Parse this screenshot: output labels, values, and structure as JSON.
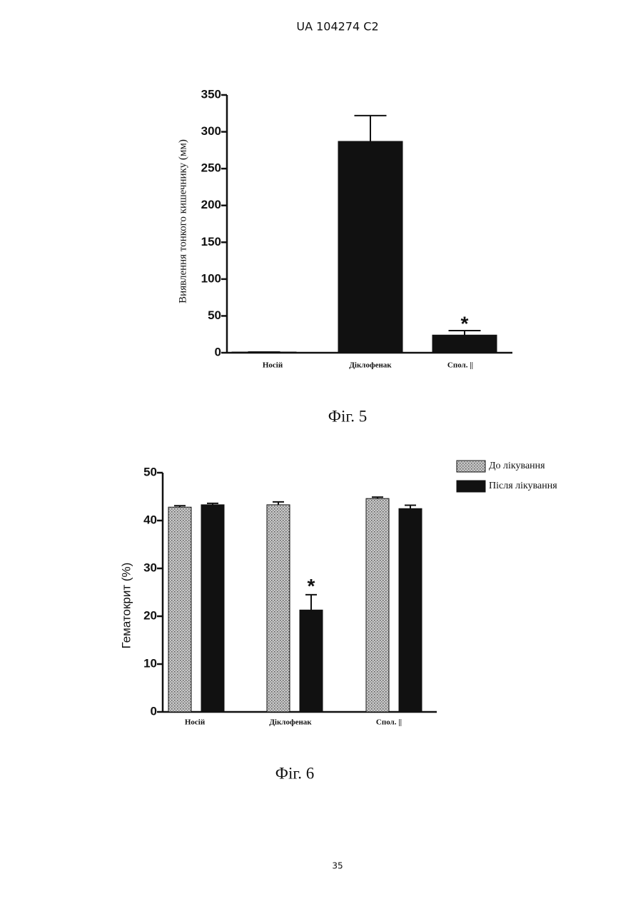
{
  "header": "UA 104274 C2",
  "page_number": "35",
  "chart_data": [
    {
      "type": "bar",
      "caption": "Фіг. 5",
      "ylabel": "Виявлення тонкого кишечнику (мм)",
      "categories": [
        "Носій",
        "Діклофенак",
        "Спол. ||"
      ],
      "values": [
        1,
        287,
        24
      ],
      "errors": [
        0,
        35,
        6
      ],
      "color": "#111111",
      "ylim": [
        0,
        350
      ],
      "yticks": [
        0,
        50,
        100,
        150,
        200,
        250,
        300,
        350
      ],
      "annotations": [
        {
          "text": "*",
          "index": 2
        }
      ]
    },
    {
      "type": "grouped_bar",
      "caption": "Фіг. 6",
      "ylabel": "Гематокрит (%)",
      "categories": [
        "Носій",
        "Діклофенак",
        "Спол. ||"
      ],
      "series": [
        {
          "name": "До лікування",
          "color": "#9a9a9a",
          "values": [
            42.8,
            43.3,
            44.6
          ],
          "errors": [
            0.3,
            0.6,
            0.3
          ]
        },
        {
          "name": "Після лікування",
          "color": "#111111",
          "values": [
            43.3,
            21.3,
            42.5
          ],
          "errors": [
            0.3,
            3.2,
            0.7
          ]
        }
      ],
      "ylim": [
        0,
        50
      ],
      "yticks": [
        0,
        10,
        20,
        30,
        40,
        50
      ],
      "legend": "upper right",
      "annotations": [
        {
          "text": "*",
          "series": 1,
          "index": 1
        }
      ]
    }
  ]
}
